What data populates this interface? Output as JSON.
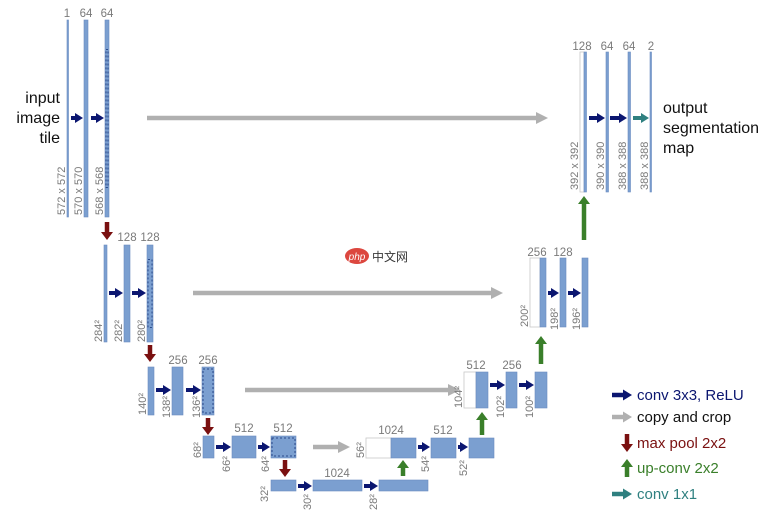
{
  "input_label": [
    "input",
    "image",
    "tile"
  ],
  "output_label": [
    "output",
    "segmentation",
    "map"
  ],
  "encoder": [
    {
      "channels": [
        "1",
        "64",
        "64"
      ],
      "sizes": [
        "572 x 572",
        "570 x 570",
        "568 x 568"
      ]
    },
    {
      "channels": [
        "",
        "128",
        "128"
      ],
      "sizes": [
        "284²",
        "282²",
        "280²"
      ]
    },
    {
      "channels": [
        "",
        "256",
        "256"
      ],
      "sizes": [
        "140²",
        "138²",
        "136²"
      ]
    },
    {
      "channels": [
        "",
        "512",
        "512"
      ],
      "sizes": [
        "68²",
        "66²",
        "64²"
      ]
    },
    {
      "channels": [
        "",
        "1024",
        ""
      ],
      "sizes": [
        "32²",
        "30²",
        "28²"
      ]
    }
  ],
  "decoder": [
    {
      "channels": [
        "1024",
        "512",
        ""
      ],
      "sizes": [
        "56²",
        "54²",
        "52²"
      ]
    },
    {
      "channels": [
        "512",
        "256",
        ""
      ],
      "sizes": [
        "104²",
        "102²",
        "100²"
      ]
    },
    {
      "channels": [
        "256",
        "128",
        ""
      ],
      "sizes": [
        "200²",
        "198²",
        "196²"
      ]
    },
    {
      "channels": [
        "128",
        "64",
        "64",
        "2"
      ],
      "sizes": [
        "392 x 392",
        "390 x 390",
        "388 x 388",
        "388 x 388"
      ]
    }
  ],
  "legend": [
    {
      "label": "conv 3x3, ReLU",
      "color": "#0b1670",
      "icon": "arrow-right"
    },
    {
      "label": "copy and crop",
      "color": "#b0b0b0",
      "text_color": "#111111",
      "icon": "arrow-right"
    },
    {
      "label": "max pool 2x2",
      "color": "#7a1010",
      "icon": "arrow-down"
    },
    {
      "label": "up-conv 2x2",
      "color": "#3a7f2a",
      "icon": "arrow-up"
    },
    {
      "label": "conv 1x1",
      "color": "#2f8080",
      "icon": "arrow-right"
    }
  ],
  "colors": {
    "feature_map": "#7b9fd0",
    "feature_map_border": "#6a8cc0",
    "conv": "#0b1670",
    "copy": "#b0b0b0",
    "maxpool": "#7a1010",
    "upconv": "#3a7f2a",
    "conv1x1": "#2f8080",
    "label": "#7a7a7a"
  },
  "watermark": {
    "logo": "php",
    "text": "中文网"
  }
}
